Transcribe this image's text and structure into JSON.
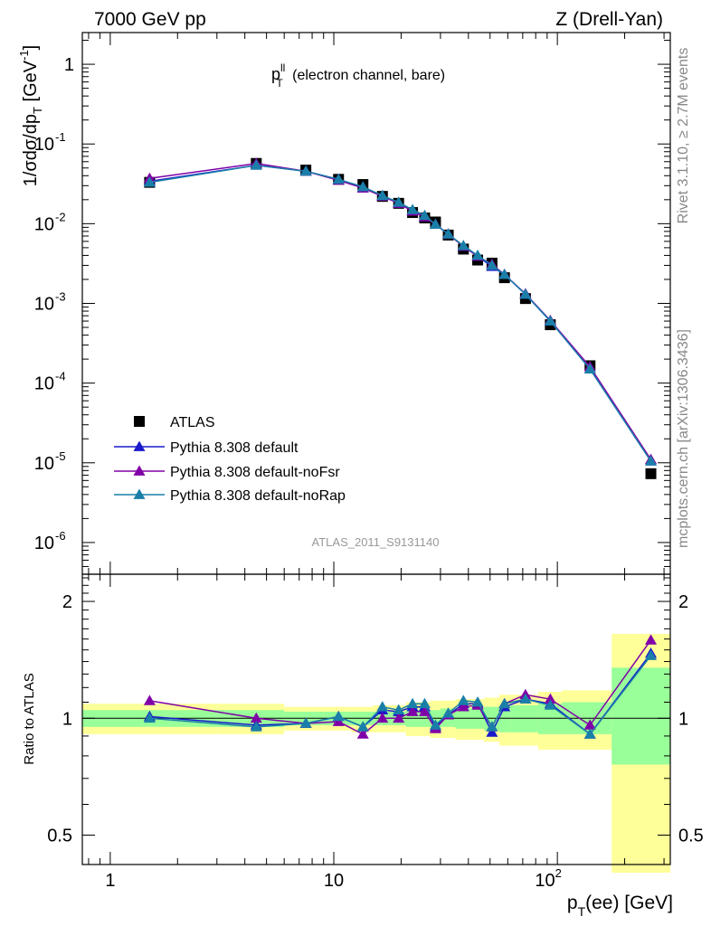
{
  "header": {
    "left": "7000 GeV pp",
    "right": "Z (Drell-Yan)"
  },
  "side_labels": {
    "top": "Rivet 3.1.10, ≥ 2.7M events",
    "bottom": "mcplots.cern.ch [arXiv:1306.3436]"
  },
  "plot_title": {
    "main": "p",
    "sup": "ll",
    "sub": "T",
    "rest": " (electron channel, bare)"
  },
  "analysis_id": "ATLAS_2011_S9131140",
  "ylabel_main": "1/σdσ/dp",
  "ylabel_sub": "T",
  "ylabel_unit": " [GeV",
  "ylabel_unit_sup": "-1",
  "ylabel_close": "]",
  "ratio_ylabel": "Ratio to ATLAS",
  "xlabel_main": "p",
  "xlabel_sub": "T",
  "xlabel_rest": "(ee) [GeV]",
  "colors": {
    "data": "#000000",
    "default": "#1a1acc",
    "noFsr": "#8000a8",
    "noRap": "#1a7fa8",
    "band_outer": "#ffff99",
    "band_inner": "#99ff99"
  },
  "chart_data": [
    {
      "type": "line",
      "panel": "main",
      "x_scale": "log",
      "y_scale": "log",
      "xlim": [
        0.75,
        320
      ],
      "ylim": [
        4e-07,
        2.5
      ],
      "x_ticks": [
        "1",
        "10",
        "10^2"
      ],
      "y_ticks": [
        "10^-6",
        "10^-5",
        "10^-4",
        "10^-3",
        "10^-2",
        "10^-1",
        "1"
      ],
      "legend_position": "lower-left",
      "x": [
        1.5,
        4.5,
        7.5,
        10.5,
        13.5,
        16.5,
        19.5,
        22.5,
        25.5,
        28.5,
        32.5,
        38,
        44,
        51,
        58,
        72,
        93,
        140,
        262
      ],
      "series": [
        {
          "name": "ATLAS",
          "style": "marker-square",
          "values": [
            0.033,
            0.057,
            0.047,
            0.036,
            0.031,
            0.022,
            0.018,
            0.0138,
            0.0118,
            0.0105,
            0.0072,
            0.0048,
            0.0035,
            0.0032,
            0.0021,
            0.00115,
            0.00054,
            0.000165,
            7.3e-06
          ]
        },
        {
          "name": "Pythia 8.308 default",
          "style": "line-triangle",
          "values": [
            0.034,
            0.054,
            0.0455,
            0.036,
            0.028,
            0.0225,
            0.018,
            0.0145,
            0.0122,
            0.0098,
            0.0074,
            0.0052,
            0.0039,
            0.0029,
            0.0023,
            0.0013,
            0.0006,
            0.00015,
            1.05e-05
          ]
        },
        {
          "name": "Pythia 8.308 default-noFsr",
          "style": "line-triangle",
          "values": [
            0.037,
            0.057,
            0.0455,
            0.035,
            0.028,
            0.022,
            0.018,
            0.0143,
            0.0122,
            0.0098,
            0.0074,
            0.0052,
            0.0039,
            0.0031,
            0.0023,
            0.00132,
            0.00061,
            0.00016,
            1.1e-05
          ]
        },
        {
          "name": "Pythia 8.308 default-noRap",
          "style": "line-triangle",
          "values": [
            0.033,
            0.054,
            0.0455,
            0.036,
            0.029,
            0.0225,
            0.0185,
            0.015,
            0.0127,
            0.0098,
            0.0074,
            0.0053,
            0.004,
            0.003,
            0.0023,
            0.0013,
            0.0006,
            0.00015,
            1.05e-05
          ]
        }
      ]
    },
    {
      "type": "line",
      "panel": "ratio",
      "x_scale": "log",
      "xlim": [
        0.75,
        320
      ],
      "ylim": [
        0.42,
        2.35
      ],
      "y_ticks": [
        "0.5",
        "1",
        "2"
      ],
      "x": [
        1.5,
        4.5,
        7.5,
        10.5,
        13.5,
        16.5,
        19.5,
        22.5,
        25.5,
        28.5,
        32.5,
        38,
        44,
        51,
        58,
        72,
        93,
        140,
        262
      ],
      "series": [
        {
          "name": "Pythia 8.308 default",
          "values": [
            1.01,
            0.96,
            0.97,
            1.01,
            0.95,
            1.05,
            1.04,
            1.07,
            1.07,
            0.95,
            1.02,
            1.09,
            1.09,
            0.92,
            1.07,
            1.12,
            1.09,
            0.91,
            1.47
          ]
        },
        {
          "name": "Pythia 8.308 default-noFsr",
          "values": [
            1.11,
            1.0,
            0.97,
            0.98,
            0.91,
            1.0,
            1.0,
            1.04,
            1.04,
            0.94,
            1.02,
            1.07,
            1.08,
            0.95,
            1.09,
            1.15,
            1.12,
            0.96,
            1.59
          ]
        },
        {
          "name": "Pythia 8.308 default-noRap",
          "values": [
            1.0,
            0.95,
            0.97,
            1.01,
            0.95,
            1.07,
            1.05,
            1.09,
            1.09,
            0.96,
            1.03,
            1.11,
            1.1,
            0.95,
            1.09,
            1.12,
            1.08,
            0.91,
            1.45
          ]
        }
      ],
      "bands": {
        "edges": [
          0.75,
          3,
          6,
          9,
          12,
          15,
          18,
          21,
          24,
          27,
          30,
          35,
          41,
          47,
          55,
          62,
          82,
          105,
          175,
          320
        ],
        "outer_lo": [
          0.91,
          0.91,
          0.93,
          0.93,
          0.92,
          0.92,
          0.92,
          0.9,
          0.9,
          0.89,
          0.89,
          0.88,
          0.88,
          0.87,
          0.85,
          0.85,
          0.83,
          0.83,
          0.4
        ],
        "outer_hi": [
          1.09,
          1.09,
          1.07,
          1.07,
          1.07,
          1.08,
          1.08,
          1.1,
          1.1,
          1.11,
          1.11,
          1.12,
          1.12,
          1.13,
          1.15,
          1.15,
          1.17,
          1.18,
          1.65
        ],
        "inner_lo": [
          0.95,
          0.95,
          0.96,
          0.96,
          0.96,
          0.96,
          0.96,
          0.95,
          0.95,
          0.95,
          0.95,
          0.94,
          0.94,
          0.93,
          0.92,
          0.92,
          0.91,
          0.91,
          0.76
        ],
        "inner_hi": [
          1.05,
          1.05,
          1.04,
          1.04,
          1.04,
          1.04,
          1.04,
          1.05,
          1.05,
          1.05,
          1.06,
          1.06,
          1.06,
          1.07,
          1.08,
          1.08,
          1.09,
          1.1,
          1.35
        ]
      }
    }
  ]
}
